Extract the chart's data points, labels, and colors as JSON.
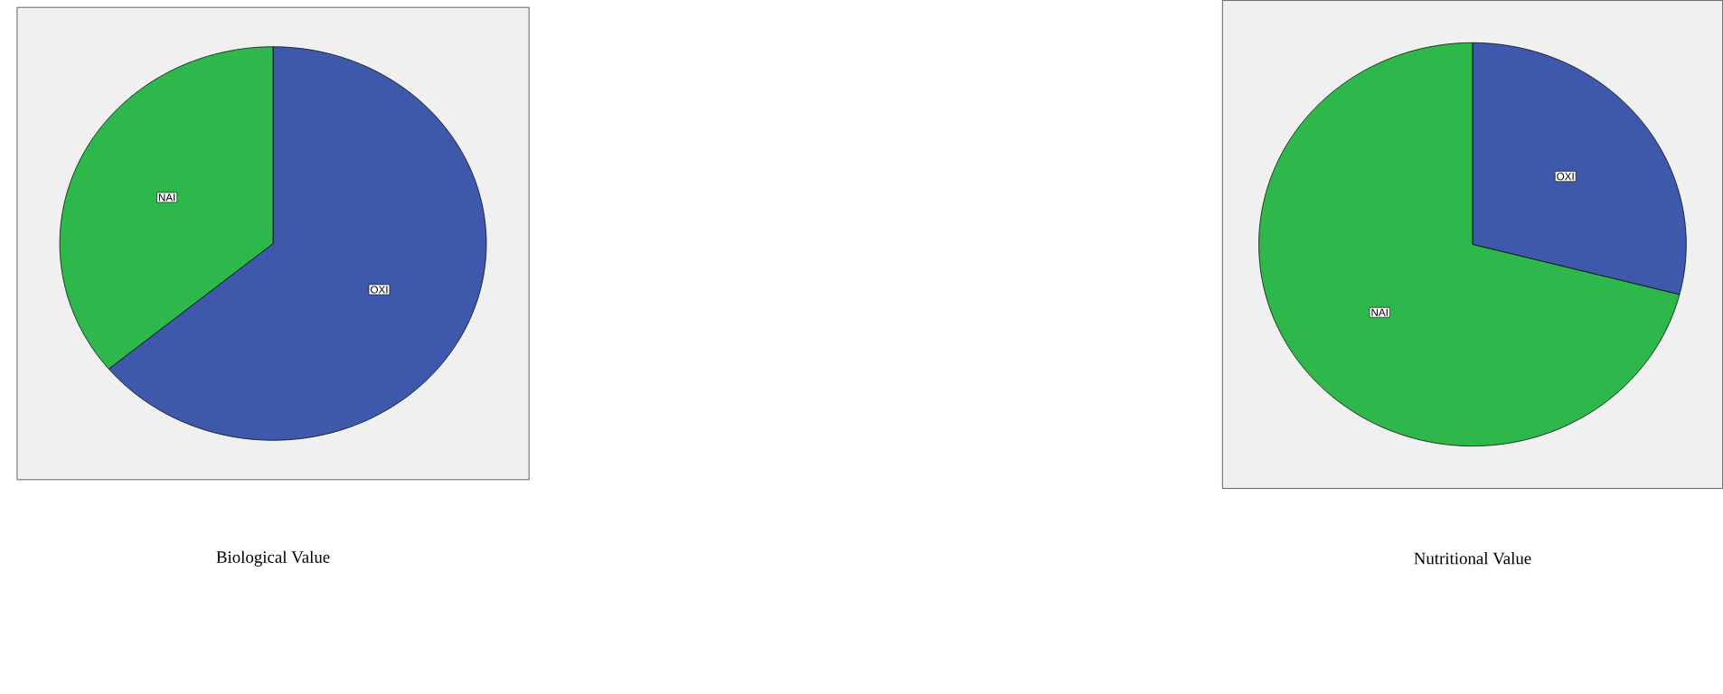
{
  "chart_data": [
    {
      "type": "pie",
      "title": "Biological Value",
      "categories": [
        "ΟΧΙ",
        "ΝΑΙ"
      ],
      "values": [
        64,
        36
      ],
      "colors": [
        "#3e58ac",
        "#2eb84b"
      ]
    },
    {
      "type": "pie",
      "title": "Nutritional Value",
      "categories": [
        "ΟΧΙ",
        "ΝΑΙ"
      ],
      "values": [
        29,
        71
      ],
      "colors": [
        "#3e58ac",
        "#2eb84b"
      ]
    }
  ]
}
